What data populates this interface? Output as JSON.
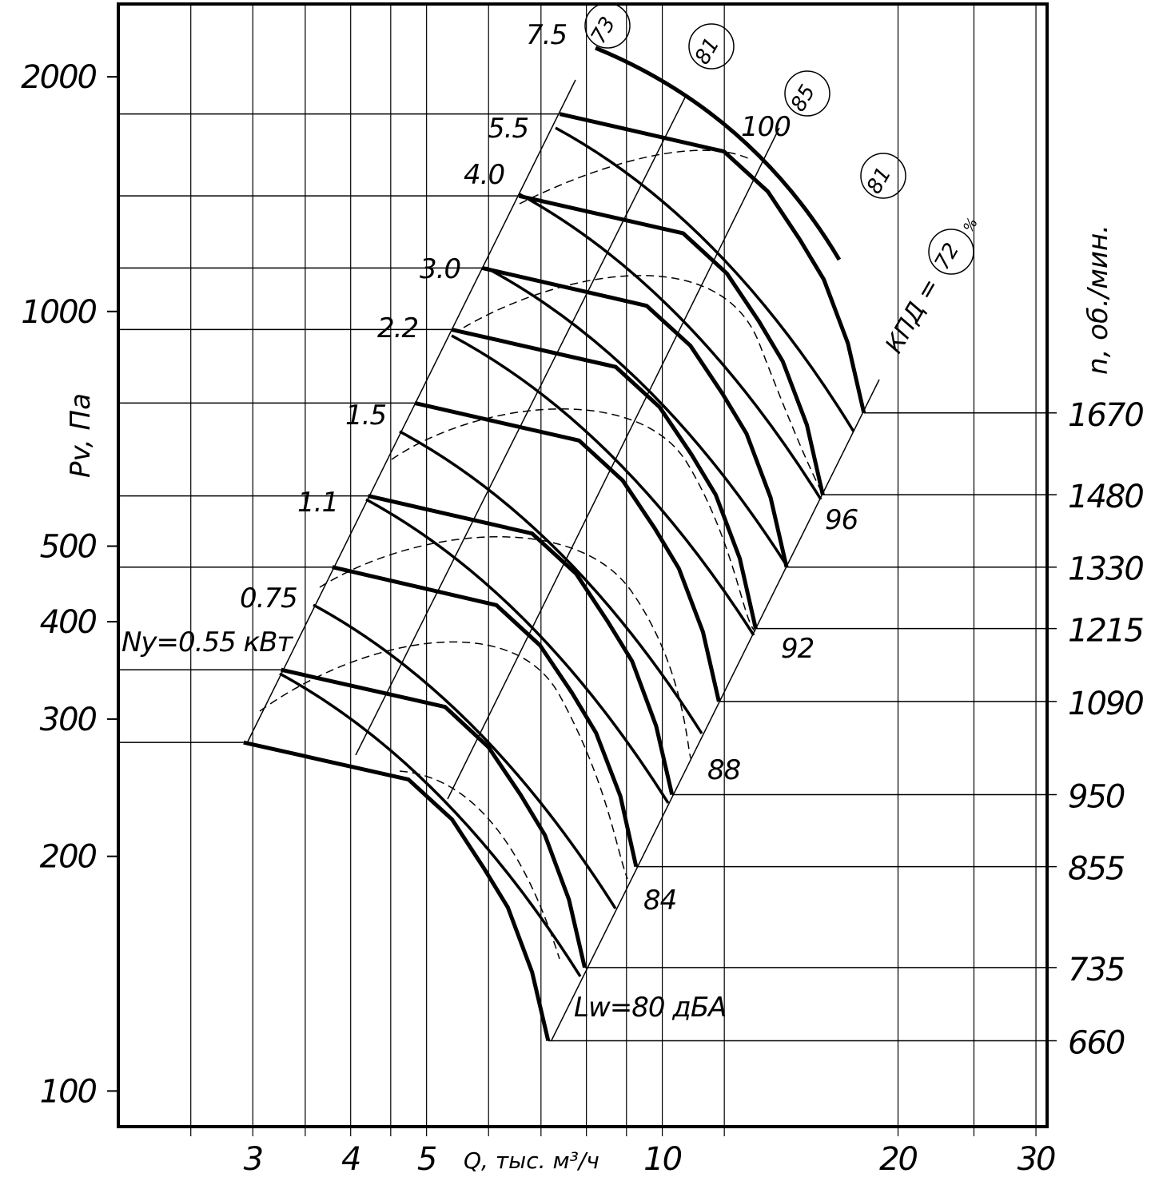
{
  "chart_data": {
    "type": "fan-chart",
    "x_label": "Q, тыс. м³/ч",
    "y_label": "Pv, Па",
    "y2_label": "n, об./мин.",
    "xscale": "log",
    "yscale": "log",
    "xlim": [
      2.02,
      31
    ],
    "ylim": [
      90,
      2480
    ],
    "xticks": [
      3,
      4,
      5,
      10,
      20,
      30
    ],
    "xminor": [
      2.5,
      3.5,
      4.5,
      6,
      7,
      8,
      9,
      12,
      25
    ],
    "yticks": [
      100,
      200,
      300,
      400,
      500,
      1000,
      2000
    ],
    "series": [
      {
        "name": "1670",
        "color": "#000000",
        "x": [
          7.4,
          11.99,
          13.64,
          14.98,
          16.08,
          17.26,
          18.09
        ],
        "values": [
          1792,
          1604,
          1425,
          1237,
          1099,
          910,
          741
        ]
      },
      {
        "name": "1480",
        "color": "#000000",
        "x": [
          6.56,
          10.63,
          12.09,
          13.28,
          14.25,
          15.3,
          16.03
        ],
        "values": [
          1407,
          1260,
          1119,
          972,
          863,
          715,
          582
        ]
      },
      {
        "name": "1330",
        "color": "#000000",
        "x": [
          5.89,
          9.55,
          10.86,
          11.93,
          12.81,
          13.75,
          14.41
        ],
        "values": [
          1137,
          1017,
          904,
          785,
          697,
          577,
          470
        ]
      },
      {
        "name": "1215",
        "color": "#000000",
        "x": [
          5.38,
          8.72,
          9.92,
          10.9,
          11.7,
          12.56,
          13.16
        ],
        "values": [
          948,
          849,
          754,
          655,
          582,
          482,
          392
        ]
      },
      {
        "name": "1090",
        "color": "#000000",
        "x": [
          4.83,
          7.83,
          8.9,
          9.78,
          10.5,
          11.27,
          11.81
        ],
        "values": [
          763,
          683,
          607,
          527,
          468,
          388,
          316
        ]
      },
      {
        "name": "950",
        "color": "#000000",
        "x": [
          4.21,
          6.82,
          7.76,
          8.52,
          9.15,
          9.82,
          10.29
        ],
        "values": [
          580,
          519,
          461,
          400,
          356,
          294,
          240
        ]
      },
      {
        "name": "855",
        "color": "#000000",
        "x": [
          3.79,
          6.14,
          6.98,
          7.67,
          8.23,
          8.84,
          9.26
        ],
        "values": [
          470,
          420,
          373,
          324,
          288,
          239,
          194
        ]
      },
      {
        "name": "735",
        "color": "#000000",
        "x": [
          3.26,
          5.28,
          6.0,
          6.59,
          7.08,
          7.6,
          7.96
        ],
        "values": [
          347,
          311,
          276,
          240,
          213,
          176,
          144
        ]
      },
      {
        "name": "660",
        "color": "#000000",
        "x": [
          2.92,
          4.74,
          5.39,
          5.92,
          6.35,
          6.82,
          7.15
        ],
        "values": [
          280,
          251,
          223,
          193,
          172,
          142,
          116
        ]
      }
    ],
    "annotations": {
      "power": [
        "7.5",
        "5.5",
        "4.0",
        "3.0",
        "2.2",
        "1.5",
        "1.1",
        "0.75",
        "Ny=0.55 кВт"
      ],
      "noise": [
        "Lw=80 дБА",
        "84",
        "88",
        "92",
        "96",
        "100"
      ],
      "efficiency": [
        "73",
        "81",
        "85",
        "81",
        "72"
      ],
      "efficiency_label": "КПД =",
      "efficiency_unit": "%"
    }
  }
}
